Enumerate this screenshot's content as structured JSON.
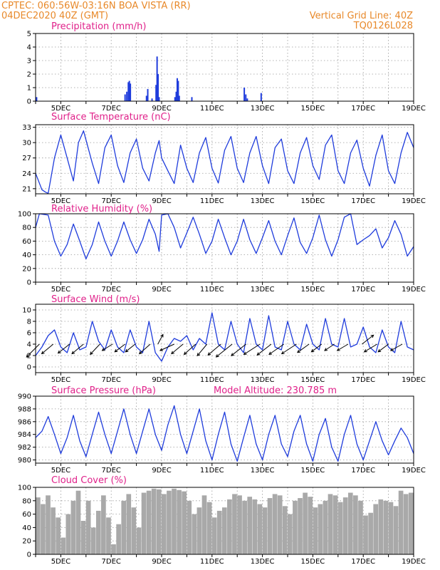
{
  "header": {
    "line1_left": "CPTEC:   060:56W-03:16N  BOA VISTA (RR)",
    "line2_left": "04DEC2020 40Z (GMT)",
    "line1_right": "Vertical Grid Line: 40Z",
    "line2_right": "TQ0126L028"
  },
  "x_labels": [
    "5DEC",
    "7DEC",
    "9DEC",
    "11DEC",
    "13DEC",
    "15DEC",
    "17DEC",
    "19DEC"
  ],
  "chart_data": [
    {
      "id": "precip",
      "type": "bar",
      "title": "Precipitation (mm/h)",
      "x_unit": "day",
      "xlim": [
        4,
        19
      ],
      "ylim": [
        0,
        5
      ],
      "yticks": [
        0,
        1,
        2,
        3,
        4,
        5
      ],
      "grid": true,
      "x": [
        4.04,
        7.55,
        7.62,
        7.68,
        7.72,
        7.76,
        8.4,
        8.45,
        8.62,
        8.78,
        8.82,
        8.86,
        8.9,
        9.53,
        9.58,
        9.62,
        9.66,
        9.7,
        10.2,
        12.28,
        12.34,
        12.4,
        12.95
      ],
      "values": [
        0.3,
        0.5,
        0.7,
        1.4,
        1.5,
        1.3,
        0.4,
        0.9,
        0.2,
        1.2,
        3.3,
        2.0,
        0.3,
        0.3,
        0.7,
        1.7,
        1.5,
        0.4,
        0.3,
        1.0,
        0.5,
        0.2,
        0.6
      ]
    },
    {
      "id": "temp",
      "type": "line",
      "title": "Surface Temperature (nC)",
      "x_unit": "day",
      "xlim": [
        4,
        19
      ],
      "ylim": [
        20,
        33.5
      ],
      "yticks": [
        21,
        24,
        27,
        30,
        33
      ],
      "grid": true,
      "series": [
        {
          "x": [
            4.0,
            4.25,
            4.4,
            4.5,
            4.75,
            5.0,
            5.25,
            5.5,
            5.7,
            5.9,
            6.25,
            6.5,
            6.75,
            7.0,
            7.25,
            7.5,
            7.75,
            8.0,
            8.25,
            8.5,
            8.75,
            8.9,
            9.0,
            9.25,
            9.5,
            9.75,
            10.0,
            10.25,
            10.5,
            10.75,
            11.0,
            11.25,
            11.5,
            11.75,
            12.0,
            12.25,
            12.5,
            12.75,
            13.0,
            13.25,
            13.5,
            13.75,
            14.0,
            14.25,
            14.5,
            14.75,
            15.0,
            15.25,
            15.5,
            15.75,
            16.0,
            16.25,
            16.5,
            16.75,
            17.0,
            17.25,
            17.5,
            17.75,
            18.0,
            18.25,
            18.5,
            18.75,
            19.0
          ],
          "y": [
            24.0,
            20.8,
            20.3,
            20.1,
            27.0,
            31.5,
            27.0,
            22.5,
            30.0,
            32.3,
            26.0,
            22.0,
            29.0,
            31.5,
            25.5,
            22.2,
            28.0,
            30.7,
            25.0,
            22.5,
            28.0,
            30.4,
            27.0,
            24.5,
            22.0,
            29.5,
            25.0,
            22.2,
            28.0,
            31.0,
            25.0,
            22.1,
            28.5,
            31.2,
            25.0,
            22.2,
            28.0,
            31.2,
            25.5,
            22.0,
            29.0,
            30.7,
            24.5,
            22.0,
            28.0,
            31.0,
            25.5,
            22.8,
            29.5,
            31.5,
            24.5,
            22.0,
            28.0,
            30.5,
            25.0,
            21.5,
            27.5,
            31.5,
            24.5,
            22.0,
            28.0,
            32.0,
            29.0
          ]
        }
      ]
    },
    {
      "id": "rh",
      "type": "line",
      "title": "Relative Humidity (%)",
      "x_unit": "day",
      "xlim": [
        4,
        19
      ],
      "ylim": [
        0,
        100
      ],
      "yticks": [
        0,
        20,
        40,
        60,
        80,
        100
      ],
      "grid": true,
      "series": [
        {
          "x": [
            4.0,
            4.15,
            4.5,
            4.75,
            5.0,
            5.25,
            5.5,
            5.75,
            6.0,
            6.25,
            6.5,
            6.75,
            7.0,
            7.25,
            7.5,
            7.75,
            8.0,
            8.25,
            8.5,
            8.75,
            8.9,
            9.0,
            9.25,
            9.5,
            9.75,
            10.0,
            10.25,
            10.5,
            10.75,
            11.0,
            11.25,
            11.5,
            11.75,
            12.0,
            12.25,
            12.5,
            12.75,
            13.0,
            13.25,
            13.5,
            13.75,
            14.0,
            14.25,
            14.5,
            14.75,
            15.0,
            15.25,
            15.5,
            15.75,
            16.0,
            16.25,
            16.5,
            16.75,
            17.0,
            17.25,
            17.5,
            17.75,
            18.0,
            18.25,
            18.5,
            18.75,
            19.0
          ],
          "y": [
            80,
            100,
            98,
            60,
            38,
            55,
            85,
            60,
            34,
            55,
            88,
            60,
            38,
            60,
            88,
            62,
            42,
            62,
            92,
            70,
            45,
            98,
            100,
            80,
            50,
            72,
            95,
            70,
            42,
            60,
            92,
            65,
            40,
            60,
            92,
            62,
            42,
            65,
            90,
            60,
            40,
            68,
            94,
            58,
            42,
            65,
            98,
            62,
            38,
            62,
            95,
            100,
            55,
            62,
            68,
            78,
            50,
            65,
            90,
            70,
            38,
            52
          ]
        }
      ]
    },
    {
      "id": "wind",
      "type": "line",
      "title": "Surface Wind (m/s)",
      "x_unit": "day",
      "xlim": [
        4,
        19
      ],
      "ylim": [
        -1,
        11
      ],
      "yticks": [
        0,
        2,
        4,
        6,
        8,
        10
      ],
      "grid": true,
      "series": [
        {
          "x": [
            4.0,
            4.25,
            4.5,
            4.75,
            5.0,
            5.25,
            5.5,
            5.75,
            6.0,
            6.25,
            6.5,
            6.75,
            7.0,
            7.25,
            7.5,
            7.75,
            8.0,
            8.25,
            8.5,
            8.75,
            9.0,
            9.25,
            9.5,
            9.75,
            10.0,
            10.25,
            10.5,
            10.75,
            11.0,
            11.25,
            11.5,
            11.75,
            12.0,
            12.25,
            12.5,
            12.75,
            13.0,
            13.25,
            13.5,
            13.75,
            14.0,
            14.25,
            14.5,
            14.75,
            15.0,
            15.25,
            15.5,
            15.75,
            16.0,
            16.25,
            16.5,
            16.75,
            17.0,
            17.25,
            17.5,
            17.75,
            18.0,
            18.25,
            18.5,
            18.75,
            19.0
          ],
          "y": [
            2.0,
            3.5,
            5.5,
            6.5,
            3.5,
            2.5,
            6.0,
            3.0,
            3.5,
            8.0,
            4.5,
            3.0,
            6.5,
            3.5,
            2.5,
            6.5,
            3.5,
            2.5,
            8.0,
            2.5,
            1.0,
            3.5,
            5.0,
            4.5,
            5.5,
            3.0,
            5.0,
            4.0,
            9.5,
            4.0,
            3.0,
            8.0,
            4.0,
            2.5,
            8.5,
            4.0,
            3.0,
            9.0,
            3.5,
            3.0,
            8.0,
            4.0,
            3.0,
            7.5,
            4.0,
            3.0,
            8.5,
            4.0,
            3.5,
            8.5,
            3.5,
            4.0,
            7.0,
            3.5,
            2.5,
            6.5,
            3.5,
            2.5,
            8.0,
            3.5,
            3.0
          ]
        }
      ],
      "vectors": {
        "x": [
          4.15,
          4.7,
          5.35,
          5.9,
          6.55,
          7.05,
          7.55,
          7.95,
          8.55,
          8.85,
          9.5,
          9.85,
          10.35,
          10.8,
          11.35,
          11.8,
          12.35,
          12.9,
          13.35,
          13.85,
          14.35,
          14.85,
          15.35,
          15.85,
          16.4,
          16.95,
          17.55,
          18.0,
          18.55
        ],
        "u": [
          -2.0,
          -1.8,
          -1.8,
          -1.8,
          -1.5,
          -1.6,
          -1.6,
          -1.5,
          -1.7,
          0.8,
          -2.2,
          -1.8,
          -1.8,
          -1.5,
          -2.0,
          -2.5,
          -2.3,
          -2.5,
          -2.2,
          -2.3,
          -2.3,
          -1.8,
          -1.6,
          -1.5,
          -1.7,
          1.8,
          -2.0,
          -1.6,
          -1.8
        ],
        "v": [
          -2.0,
          -1.5,
          -1.4,
          -1.5,
          -1.6,
          -1.0,
          -1.2,
          -1.2,
          -1.5,
          1.5,
          -1.0,
          -1.5,
          -1.6,
          -1.8,
          -1.7,
          -2.0,
          -1.8,
          -1.6,
          -1.7,
          -1.6,
          -1.5,
          -1.3,
          -1.2,
          -1.0,
          -1.0,
          1.4,
          -1.2,
          -1.2,
          -1.0
        ]
      }
    },
    {
      "id": "pres",
      "type": "line",
      "title": "Surface Pressure (hPa)",
      "annotation": "Model Altitude: 230.785 m",
      "x_unit": "day",
      "xlim": [
        4,
        19
      ],
      "ylim": [
        979.5,
        990
      ],
      "yticks": [
        980,
        982,
        984,
        986,
        988,
        990
      ],
      "grid": true,
      "series": [
        {
          "x": [
            4.0,
            4.25,
            4.5,
            4.75,
            5.0,
            5.25,
            5.5,
            5.75,
            6.0,
            6.25,
            6.5,
            6.75,
            7.0,
            7.25,
            7.5,
            7.75,
            8.0,
            8.25,
            8.5,
            8.75,
            9.0,
            9.25,
            9.5,
            9.75,
            10.0,
            10.25,
            10.5,
            10.75,
            11.0,
            11.25,
            11.5,
            11.75,
            12.0,
            12.25,
            12.5,
            12.75,
            13.0,
            13.25,
            13.5,
            13.75,
            14.0,
            14.25,
            14.5,
            14.75,
            15.0,
            15.25,
            15.5,
            15.75,
            16.0,
            16.25,
            16.5,
            16.75,
            17.0,
            17.25,
            17.5,
            17.75,
            18.0,
            18.25,
            18.5,
            18.75,
            19.0
          ],
          "y": [
            983.5,
            984.5,
            986.8,
            984.0,
            981.0,
            983.5,
            987.0,
            983.0,
            980.5,
            984.0,
            987.5,
            984.0,
            981.0,
            984.5,
            988.0,
            984.0,
            981.0,
            984.5,
            988.0,
            984.0,
            981.5,
            985.5,
            988.5,
            984.0,
            981.0,
            984.5,
            988.0,
            983.0,
            980.0,
            984.0,
            987.5,
            982.5,
            979.8,
            983.5,
            987.0,
            982.5,
            980.0,
            984.0,
            987.0,
            982.5,
            980.5,
            984.5,
            987.0,
            982.5,
            979.8,
            984.0,
            986.5,
            982.0,
            979.8,
            984.0,
            987.0,
            982.5,
            980.0,
            983.0,
            986.0,
            983.0,
            980.8,
            983.0,
            985.0,
            983.5,
            981.0
          ]
        }
      ]
    },
    {
      "id": "cloud",
      "type": "area",
      "title": "Cloud Cover (%)",
      "x_unit": "day",
      "xlim": [
        4,
        19
      ],
      "ylim": [
        0,
        100
      ],
      "yticks": [
        0,
        20,
        40,
        60,
        80,
        100
      ],
      "grid": true,
      "series": [
        {
          "x": [
            4.0,
            4.2,
            4.4,
            4.6,
            4.8,
            5.0,
            5.2,
            5.4,
            5.6,
            5.8,
            6.0,
            6.2,
            6.4,
            6.6,
            6.8,
            7.0,
            7.2,
            7.4,
            7.6,
            7.8,
            8.0,
            8.2,
            8.4,
            8.6,
            8.8,
            9.0,
            9.2,
            9.4,
            9.6,
            9.8,
            10.0,
            10.2,
            10.4,
            10.6,
            10.8,
            11.0,
            11.2,
            11.4,
            11.6,
            11.8,
            12.0,
            12.2,
            12.4,
            12.6,
            12.8,
            13.0,
            13.2,
            13.4,
            13.6,
            13.8,
            14.0,
            14.2,
            14.4,
            14.6,
            14.8,
            15.0,
            15.2,
            15.4,
            15.6,
            15.8,
            16.0,
            16.2,
            16.4,
            16.6,
            16.8,
            17.0,
            17.2,
            17.4,
            17.6,
            17.8,
            18.0,
            18.2,
            18.4,
            18.6,
            18.8,
            19.0
          ],
          "y": [
            85,
            75,
            88,
            70,
            55,
            25,
            60,
            80,
            95,
            50,
            80,
            40,
            65,
            88,
            55,
            15,
            45,
            80,
            90,
            70,
            40,
            92,
            95,
            98,
            97,
            90,
            95,
            98,
            96,
            94,
            80,
            60,
            70,
            88,
            78,
            55,
            65,
            70,
            82,
            90,
            88,
            80,
            86,
            82,
            75,
            70,
            84,
            90,
            88,
            72,
            60,
            80,
            84,
            92,
            86,
            70,
            75,
            80,
            90,
            88,
            78,
            85,
            92,
            88,
            80,
            58,
            62,
            75,
            82,
            80,
            78,
            72,
            95,
            90,
            92,
            95
          ]
        }
      ]
    }
  ]
}
